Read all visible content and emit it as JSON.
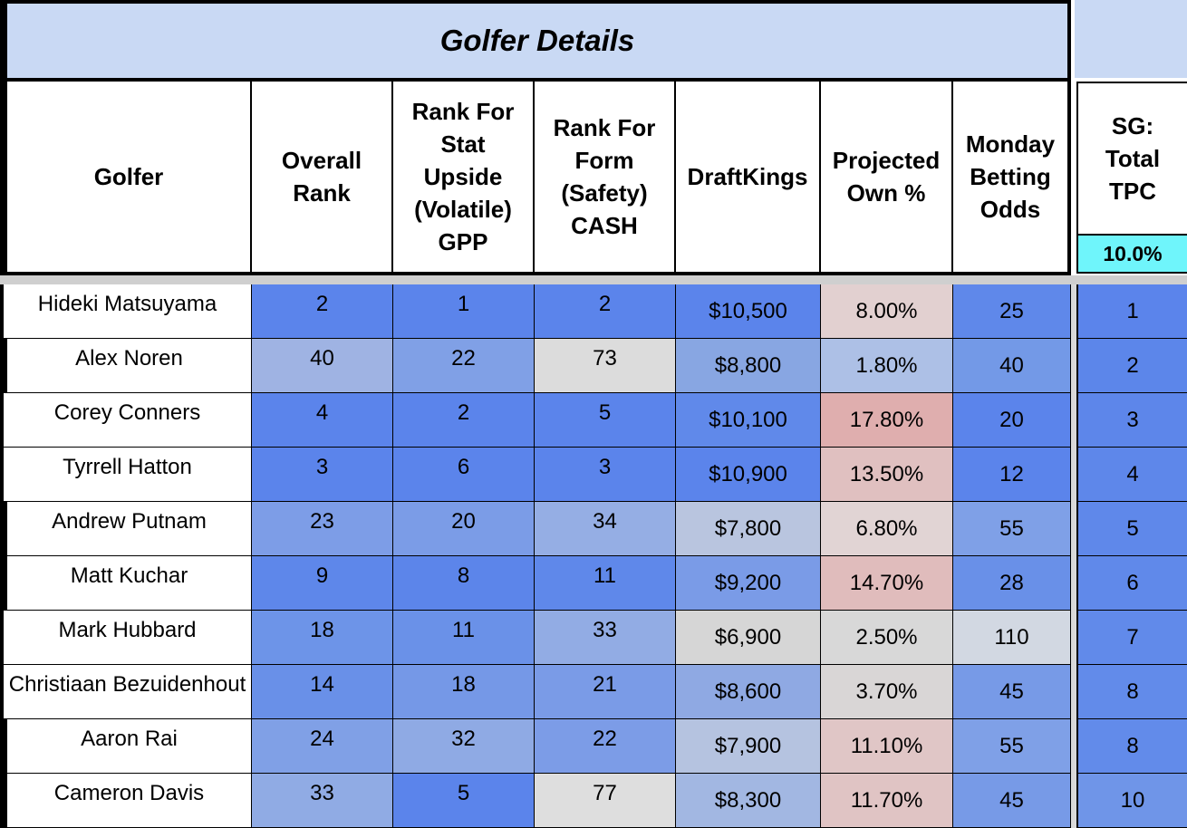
{
  "title": "Golfer Details",
  "headers": {
    "golfer": "Golfer",
    "overall_rank": "Overall Rank",
    "rank_stat": "Rank For Stat Upside (Volatile) GPP",
    "rank_form": "Rank For Form (Safety) CASH",
    "draftkings": "DraftKings",
    "projected_own": "Projected Own %",
    "monday_odds": "Monday Betting Odds",
    "sg_total": "SG: Total TPC",
    "sg_weight": "10.0%"
  },
  "colors": {
    "title_bg": "#c9d9f4",
    "weight_bg": "#6ff5fb",
    "rank_blue": "#5b84eb",
    "neutral_gray": "#d6d6d6",
    "pink_high": "#dfaeae"
  },
  "rows": [
    {
      "golfer": "Hideki Matsuyama",
      "overall": "2",
      "stat": "1",
      "form": "2",
      "dk": "$10,500",
      "own": "8.00%",
      "odds": "25",
      "sg": "1",
      "c_overall": "#5b84eb",
      "c_stat": "#5b84eb",
      "c_form": "#5b84eb",
      "c_dk": "#5b84eb",
      "c_own": "#e2d0d0",
      "c_odds": "#5f88ea",
      "c_sg": "#5b84eb"
    },
    {
      "golfer": "Alex Noren",
      "overall": "40",
      "stat": "22",
      "form": "73",
      "dk": "$8,800",
      "own": "1.80%",
      "odds": "40",
      "sg": "2",
      "c_overall": "#9fb3e3",
      "c_stat": "#80a0e6",
      "c_form": "#dcdcdc",
      "c_dk": "#88a6e2",
      "c_own": "#adc0e6",
      "c_odds": "#7399e7",
      "c_sg": "#5c86ea"
    },
    {
      "golfer": "Corey Conners",
      "overall": "4",
      "stat": "2",
      "form": "5",
      "dk": "$10,100",
      "own": "17.80%",
      "odds": "20",
      "sg": "3",
      "c_overall": "#5b84eb",
      "c_stat": "#5b84eb",
      "c_form": "#5b84eb",
      "c_dk": "#6089ea",
      "c_own": "#dfaeae",
      "c_odds": "#5b84eb",
      "c_sg": "#5d86ea"
    },
    {
      "golfer": "Tyrrell Hatton",
      "overall": "3",
      "stat": "6",
      "form": "3",
      "dk": "$10,900",
      "own": "13.50%",
      "odds": "12",
      "sg": "4",
      "c_overall": "#5b84eb",
      "c_stat": "#5b84eb",
      "c_form": "#5b84eb",
      "c_dk": "#5b84eb",
      "c_own": "#e0c0c0",
      "c_odds": "#5b84eb",
      "c_sg": "#5e87ea"
    },
    {
      "golfer": "Andrew Putnam",
      "overall": "23",
      "stat": "20",
      "form": "34",
      "dk": "$7,800",
      "own": "6.80%",
      "odds": "55",
      "sg": "5",
      "c_overall": "#7d9de7",
      "c_stat": "#7b9ce7",
      "c_form": "#95aee4",
      "c_dk": "#b9c5df",
      "c_own": "#e1d4d4",
      "c_odds": "#7fa0e7",
      "c_sg": "#5f88ea"
    },
    {
      "golfer": "Matt Kuchar",
      "overall": "9",
      "stat": "8",
      "form": "11",
      "dk": "$9,200",
      "own": "14.70%",
      "odds": "28",
      "sg": "6",
      "c_overall": "#5e87ea",
      "c_stat": "#5c85ea",
      "c_form": "#5f88ea",
      "c_dk": "#7a9be7",
      "c_own": "#e0bcbc",
      "c_odds": "#6990e8",
      "c_sg": "#6089ea"
    },
    {
      "golfer": "Mark Hubbard",
      "overall": "18",
      "stat": "11",
      "form": "33",
      "dk": "$6,900",
      "own": "2.50%",
      "odds": "110",
      "sg": "7",
      "c_overall": "#6d94e8",
      "c_stat": "#6a91e8",
      "c_form": "#92ace4",
      "c_dk": "#d6d6d6",
      "c_own": "#d8d8d8",
      "c_odds": "#d2d8e2",
      "c_sg": "#618aea"
    },
    {
      "golfer": "Christiaan Bezuidenhout",
      "overall": "14",
      "stat": "18",
      "form": "21",
      "dk": "$8,600",
      "own": "3.70%",
      "odds": "45",
      "sg": "8",
      "c_overall": "#6990e8",
      "c_stat": "#7598e7",
      "c_form": "#7a9be7",
      "c_dk": "#8fa9e3",
      "c_own": "#d9d6d6",
      "c_odds": "#779ae7",
      "c_sg": "#628bea"
    },
    {
      "golfer": "Aaron Rai",
      "overall": "24",
      "stat": "32",
      "form": "22",
      "dk": "$7,900",
      "own": "11.10%",
      "odds": "55",
      "sg": "8",
      "c_overall": "#80a0e6",
      "c_stat": "#8faae4",
      "c_form": "#7c9ce7",
      "c_dk": "#b5c3e0",
      "c_own": "#e0c6c6",
      "c_odds": "#7fa0e7",
      "c_sg": "#628bea"
    },
    {
      "golfer": "Cameron Davis",
      "overall": "33",
      "stat": "5",
      "form": "77",
      "dk": "$8,300",
      "own": "11.70%",
      "odds": "45",
      "sg": "10",
      "c_overall": "#90abe4",
      "c_stat": "#5b84eb",
      "c_form": "#dedede",
      "c_dk": "#a2b7e2",
      "c_own": "#e0c4c4",
      "c_odds": "#779ae7",
      "c_sg": "#6f95e8"
    }
  ]
}
